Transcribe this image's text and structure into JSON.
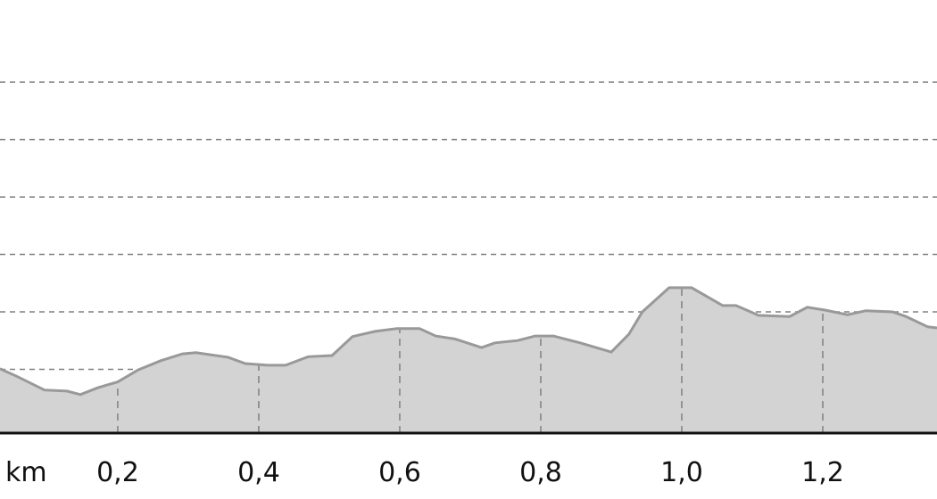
{
  "chart_data": {
    "type": "area",
    "title": "",
    "xlabel": "km",
    "ylabel": "",
    "xlim": [
      0.033,
      1.362
    ],
    "ylim": [
      -0.11,
      7.43
    ],
    "grid": true,
    "x_ticks": [
      0.2,
      0.4,
      0.6,
      0.8,
      1.0,
      1.2
    ],
    "x_tick_labels": [
      "0,2",
      "0,4",
      "0,6",
      "0,8",
      "1,0",
      "1,2"
    ],
    "y_gridlines": [
      0,
      1,
      2,
      3,
      4,
      5,
      6
    ],
    "colors": {
      "fill": "#d3d3d3",
      "line": "#999999",
      "grid": "#808080",
      "axis": "#111111"
    },
    "series": [
      {
        "x": [
          0.033,
          0.058,
          0.096,
          0.128,
          0.147,
          0.172,
          0.2,
          0.229,
          0.261,
          0.292,
          0.311,
          0.356,
          0.381,
          0.413,
          0.438,
          0.47,
          0.504,
          0.533,
          0.565,
          0.596,
          0.628,
          0.651,
          0.678,
          0.716,
          0.735,
          0.767,
          0.792,
          0.818,
          0.856,
          0.9,
          0.925,
          0.944,
          0.982,
          1.014,
          1.058,
          1.077,
          1.109,
          1.153,
          1.178,
          1.204,
          1.235,
          1.261,
          1.299,
          1.318,
          1.349,
          1.362
        ],
        "y": [
          1.01,
          0.87,
          0.64,
          0.62,
          0.56,
          0.68,
          0.78,
          0.99,
          1.15,
          1.27,
          1.29,
          1.21,
          1.1,
          1.07,
          1.07,
          1.22,
          1.24,
          1.57,
          1.66,
          1.71,
          1.71,
          1.58,
          1.53,
          1.38,
          1.46,
          1.5,
          1.58,
          1.58,
          1.46,
          1.3,
          1.61,
          2.0,
          2.42,
          2.42,
          2.11,
          2.11,
          1.94,
          1.92,
          2.08,
          2.03,
          1.95,
          2.02,
          2.0,
          1.92,
          1.74,
          1.72
        ]
      }
    ]
  }
}
